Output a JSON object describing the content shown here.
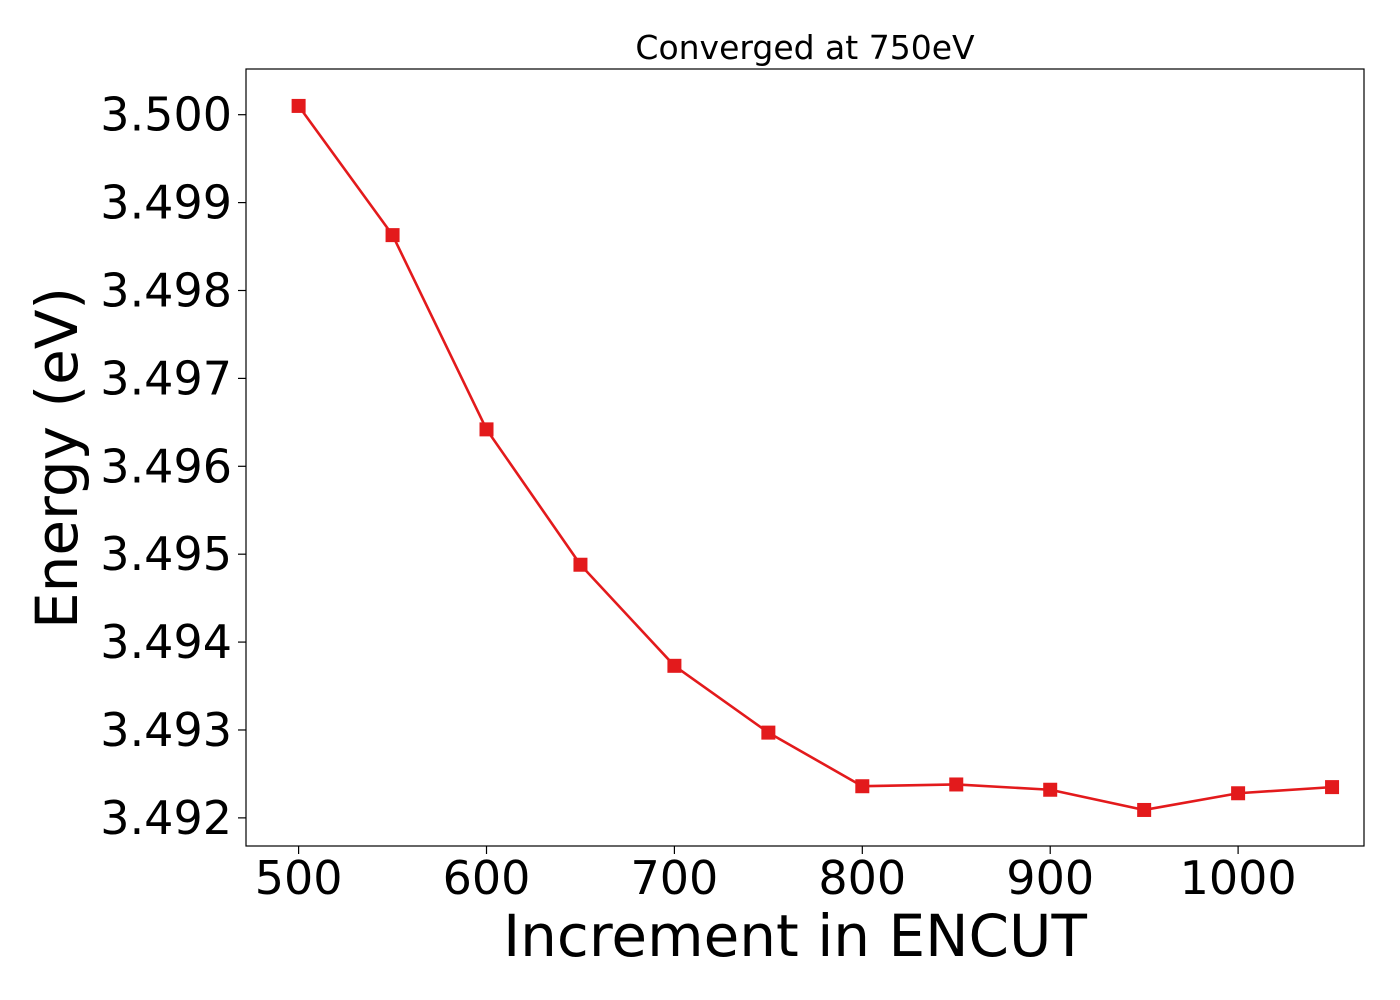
{
  "chart_data": {
    "type": "line",
    "title": "Converged at 750eV",
    "xlabel": "Increment in ENCUT",
    "ylabel": "Energy (eV)",
    "x": [
      500,
      550,
      600,
      650,
      700,
      750,
      800,
      850,
      900,
      950,
      1000,
      1050
    ],
    "series": [
      {
        "values": [
          3.5001,
          3.49863,
          3.49642,
          3.49488,
          3.49373,
          3.49297,
          3.49236,
          3.49238,
          3.49232,
          3.49209,
          3.49228,
          3.49235
        ],
        "color": "#e31a1c",
        "marker": "square"
      }
    ],
    "xlim": [
      472,
      1067
    ],
    "ylim": [
      3.49168,
      3.50052
    ],
    "xticks": [
      500,
      600,
      700,
      800,
      900,
      1000
    ],
    "yticks": [
      3.492,
      3.493,
      3.494,
      3.495,
      3.496,
      3.497,
      3.498,
      3.499,
      3.5
    ],
    "ytick_labels": [
      "3.492",
      "3.493",
      "3.494",
      "3.495",
      "3.496",
      "3.497",
      "3.498",
      "3.499",
      "3.500"
    ],
    "grid": false,
    "legend": "none"
  }
}
